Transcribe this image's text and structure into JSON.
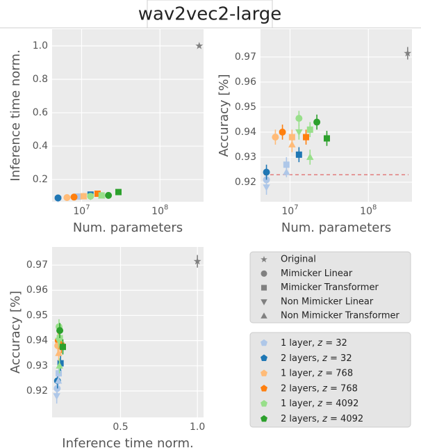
{
  "title": "wav2vec2-large",
  "chart_data": [
    {
      "type": "scatter",
      "xlabel": "Num. parameters",
      "ylabel": "Inference time norm.",
      "xscale": "log",
      "grid": true,
      "xlim": [
        4200000,
        360000000
      ],
      "ylim": [
        0.067,
        1.1
      ],
      "xticks": [
        {
          "value": 10000000,
          "label": "10^7"
        },
        {
          "value": 100000000,
          "label": "10^8"
        }
      ],
      "yticks": [
        0.2,
        0.4,
        0.6,
        0.8,
        {
          "value": 1,
          "label": "1.0"
        }
      ],
      "x": [
        317000000,
        5000000,
        5000000,
        5000000,
        9000000,
        9000000,
        13000000,
        6500000,
        8000000,
        10600000,
        10600000,
        16000000,
        13000000,
        13000000,
        18000000,
        18000000,
        22000000,
        29500000
      ],
      "y": [
        1.0,
        0.088,
        0.085,
        0.09,
        0.098,
        0.096,
        0.11,
        0.092,
        0.095,
        0.1,
        0.098,
        0.115,
        0.1,
        0.098,
        0.105,
        0.103,
        0.105,
        0.125
      ],
      "markers": [
        "star",
        "circle",
        "down",
        "circle",
        "square",
        "up",
        "square",
        "circle",
        "circle",
        "square",
        "up",
        "square",
        "circle",
        "down",
        "square",
        "up",
        "circle",
        "square"
      ],
      "colors": [
        "#808080",
        "#aec7e8",
        "#aec7e8",
        "#1f77b4",
        "#aec7e8",
        "#aec7e8",
        "#1f77b4",
        "#ffbb78",
        "#ff7f0e",
        "#ffbb78",
        "#ffbb78",
        "#ff7f0e",
        "#98df8a",
        "#98df8a",
        "#98df8a",
        "#98df8a",
        "#2ca02c",
        "#2ca02c"
      ]
    },
    {
      "type": "scatter",
      "xlabel": "Num. parameters",
      "ylabel": "Accuracy [%]",
      "xscale": "log",
      "grid": true,
      "xlim": [
        4200000,
        360000000
      ],
      "ylim": [
        0.9122,
        0.9811
      ],
      "xticks": [
        {
          "value": 10000000,
          "label": "10^7"
        },
        {
          "value": 100000000,
          "label": "10^8"
        }
      ],
      "yticks": [
        0.92,
        0.93,
        0.94,
        0.95,
        0.96,
        0.97
      ],
      "hline": {
        "value": 0.923,
        "color": "#e06666"
      },
      "x": [
        317000000,
        5000000,
        5000000,
        5000000,
        9000000,
        9000000,
        13000000,
        6500000,
        8000000,
        10600000,
        10600000,
        16000000,
        13000000,
        13000000,
        18000000,
        18000000,
        22000000,
        29500000
      ],
      "y": [
        0.9715,
        0.921,
        0.918,
        0.924,
        0.927,
        0.924,
        0.931,
        0.938,
        0.94,
        0.938,
        0.935,
        0.938,
        0.9455,
        0.94,
        0.941,
        0.93,
        0.944,
        0.9375
      ],
      "errors": [
        0.0025,
        0.003,
        0.003,
        0.003,
        0.003,
        0.002,
        0.003,
        0.003,
        0.003,
        0.003,
        0.003,
        0.003,
        0.003,
        0.003,
        0.003,
        0.003,
        0.003,
        0.003
      ],
      "markers": [
        "star",
        "circle",
        "down",
        "circle",
        "square",
        "up",
        "square",
        "circle",
        "circle",
        "square",
        "up",
        "square",
        "circle",
        "down",
        "square",
        "up",
        "circle",
        "square"
      ],
      "colors": [
        "#808080",
        "#aec7e8",
        "#aec7e8",
        "#1f77b4",
        "#aec7e8",
        "#aec7e8",
        "#1f77b4",
        "#ffbb78",
        "#ff7f0e",
        "#ffbb78",
        "#ffbb78",
        "#ff7f0e",
        "#98df8a",
        "#98df8a",
        "#98df8a",
        "#98df8a",
        "#2ca02c",
        "#2ca02c"
      ]
    },
    {
      "type": "scatter",
      "xlabel": "Inference time norm.",
      "ylabel": "Accuracy [%]",
      "grid": true,
      "xlim": [
        0.055,
        1.04
      ],
      "ylim": [
        0.9095,
        0.9772
      ],
      "xticks": [
        0.5,
        {
          "value": 1,
          "label": "1.0"
        }
      ],
      "yticks": [
        0.92,
        0.93,
        0.94,
        0.95,
        0.96,
        0.97
      ],
      "x": [
        1.0,
        0.088,
        0.085,
        0.09,
        0.098,
        0.096,
        0.11,
        0.092,
        0.095,
        0.1,
        0.098,
        0.115,
        0.1,
        0.098,
        0.105,
        0.103,
        0.105,
        0.125
      ],
      "y": [
        0.9715,
        0.921,
        0.918,
        0.924,
        0.927,
        0.924,
        0.931,
        0.938,
        0.94,
        0.938,
        0.935,
        0.938,
        0.9455,
        0.94,
        0.941,
        0.93,
        0.944,
        0.9375
      ],
      "errors": [
        0.0025,
        0.003,
        0.003,
        0.003,
        0.003,
        0.002,
        0.003,
        0.003,
        0.003,
        0.003,
        0.003,
        0.003,
        0.003,
        0.003,
        0.003,
        0.003,
        0.003,
        0.003
      ],
      "markers": [
        "star",
        "circle",
        "down",
        "circle",
        "square",
        "up",
        "square",
        "circle",
        "circle",
        "square",
        "up",
        "square",
        "circle",
        "down",
        "square",
        "up",
        "circle",
        "square"
      ],
      "colors": [
        "#808080",
        "#aec7e8",
        "#aec7e8",
        "#1f77b4",
        "#aec7e8",
        "#aec7e8",
        "#1f77b4",
        "#ffbb78",
        "#ff7f0e",
        "#ffbb78",
        "#ffbb78",
        "#ff7f0e",
        "#98df8a",
        "#98df8a",
        "#98df8a",
        "#98df8a",
        "#2ca02c",
        "#2ca02c"
      ]
    }
  ],
  "legend": {
    "markers": [
      {
        "label": "Original",
        "marker": "star"
      },
      {
        "label": "Mimicker Linear",
        "marker": "circle"
      },
      {
        "label": "Mimicker Transformer",
        "marker": "square"
      },
      {
        "label": "Non Mimicker Linear",
        "marker": "down"
      },
      {
        "label": "Non Mimicker Transformer",
        "marker": "up"
      }
    ],
    "colors": [
      {
        "label": "1 layer, z = 32",
        "color": "#aec7e8"
      },
      {
        "label": "2 layers, z = 32",
        "color": "#1f77b4"
      },
      {
        "label": "1 layer, z = 768",
        "color": "#ffbb78"
      },
      {
        "label": "2 layers, z = 768",
        "color": "#ff7f0e"
      },
      {
        "label": "1 layer, z = 4092",
        "color": "#98df8a"
      },
      {
        "label": "2 layers, z = 4092",
        "color": "#2ca02c"
      }
    ]
  }
}
